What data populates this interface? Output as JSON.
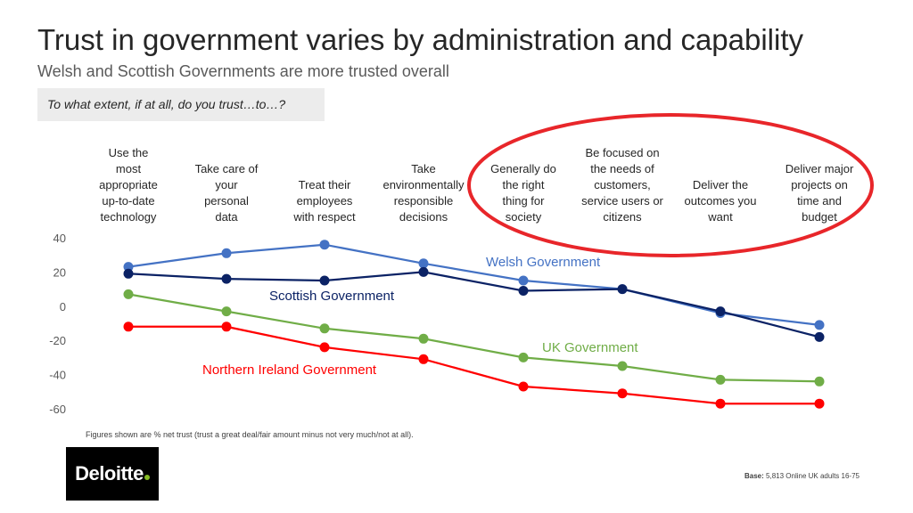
{
  "title": "Trust in government varies by administration and capability",
  "subtitle": "Welsh and Scottish Governments are more trusted overall",
  "question": "To what extent, if at all, do you trust…to…?",
  "footnote": "Figures shown are % net trust (trust a great deal/fair amount minus not very much/not at all).",
  "base": {
    "label": "Base:",
    "text": "5,813 Online UK adults 16-75"
  },
  "logo": {
    "text": "Deloitte",
    "dot_color": "#86bc25"
  },
  "highlight_color": "#e8262a",
  "chart_data": {
    "type": "line",
    "categories": [
      "Use  the\nmost\nappropriate\nup-to-date\ntechnology",
      "Take care of\nyour\npersonal\ndata",
      "Treat their\nemployees\nwith respect",
      "Take\nenvironmentally\nresponsible\ndecisions",
      "Generally do\nthe right\nthing for\nsociety",
      "Be focused on\nthe needs of\ncustomers,\nservice users or\ncitizens",
      "Deliver the\noutcomes you\nwant",
      "Deliver major\nprojects on\ntime and\nbudget"
    ],
    "ylim": [
      -60,
      40
    ],
    "yticks": [
      40,
      20,
      0,
      -20,
      -40,
      -60
    ],
    "grid": false,
    "series": [
      {
        "name": "Welsh Government",
        "color": "#4472c4",
        "values": [
          23,
          31,
          36,
          25,
          15,
          10,
          -4,
          -11
        ]
      },
      {
        "name": "Scottish Government",
        "color": "#0b2265",
        "values": [
          19,
          16,
          15,
          20,
          9,
          10,
          -3,
          -18
        ]
      },
      {
        "name": "UK Government",
        "color": "#70ad47",
        "values": [
          7,
          -3,
          -13,
          -19,
          -30,
          -35,
          -43,
          -44
        ]
      },
      {
        "name": "Northern Ireland Government",
        "color": "#ff0000",
        "values": [
          -12,
          -12,
          -24,
          -31,
          -47,
          -51,
          -57,
          -57
        ]
      }
    ]
  }
}
